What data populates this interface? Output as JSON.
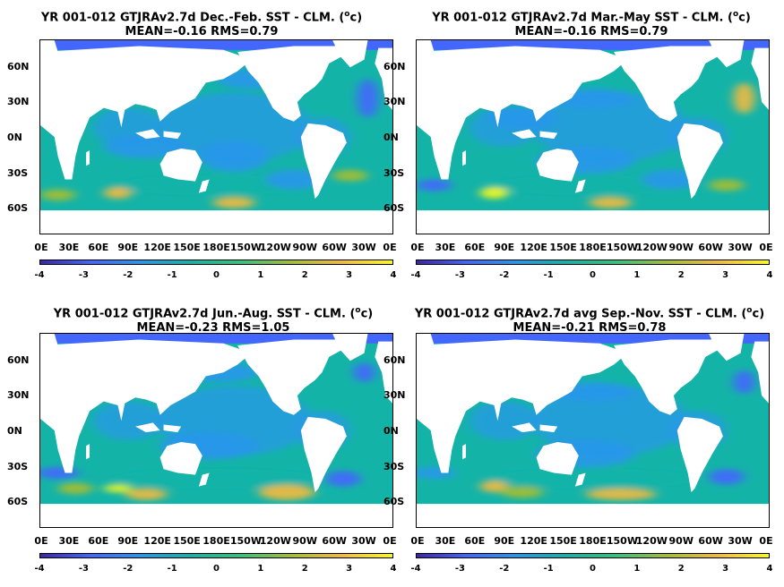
{
  "panels": [
    {
      "title_pre": "YR 001-012 GTJRAv2.7d  Dec.-Feb. SST - CLM. (",
      "title_sup": "o",
      "title_post": "c)",
      "stats": "MEAN=-0.16   RMS=0.79"
    },
    {
      "title_pre": "YR 001-012 GTJRAv2.7d  Mar.-May SST - CLM. (",
      "title_sup": "o",
      "title_post": "c)",
      "stats": "MEAN=-0.16   RMS=0.79"
    },
    {
      "title_pre": "YR 001-012 GTJRAv2.7d  Jun.-Aug. SST - CLM. (",
      "title_sup": "o",
      "title_post": "c)",
      "stats": "MEAN=-0.23   RMS=1.05"
    },
    {
      "title_pre": "YR 001-012 GTJRAv2.7d avg Sep.-Nov. SST - CLM. (",
      "title_sup": "o",
      "title_post": "c)",
      "stats": "MEAN=-0.21   RMS=0.78"
    }
  ],
  "lon_ticks": [
    "0E",
    "30E",
    "60E",
    "90E",
    "120E",
    "150E",
    "180E",
    "150W",
    "120W",
    "90W",
    "60W",
    "30W",
    "0E"
  ],
  "lat_ticks": [
    "60N",
    "30N",
    "0N",
    "30S",
    "60S"
  ],
  "colorbar_ticks": [
    "-4",
    "-3",
    "-2",
    "-1",
    "0",
    "1",
    "2",
    "3",
    "4"
  ],
  "colormap": [
    "#3e26a8",
    "#4367fd",
    "#2797eb",
    "#14b3a8",
    "#35c37d",
    "#a5be32",
    "#f4ba3d",
    "#f9fb15"
  ],
  "background_color": "#2fb9b0",
  "land_color": "#ffffff"
}
